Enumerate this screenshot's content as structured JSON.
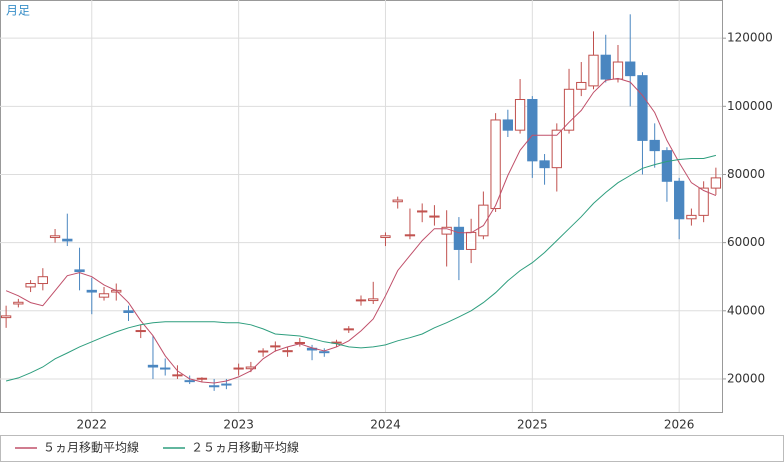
{
  "chart_data": {
    "type": "candlestick",
    "label": "月足",
    "categories": [
      null,
      null,
      null,
      null,
      null,
      null,
      null,
      "2022",
      null,
      null,
      null,
      null,
      null,
      null,
      null,
      null,
      null,
      null,
      null,
      "2023",
      null,
      null,
      null,
      null,
      null,
      null,
      null,
      null,
      null,
      null,
      null,
      "2024",
      null,
      null,
      null,
      null,
      null,
      null,
      null,
      null,
      null,
      null,
      null,
      "2025",
      null,
      null,
      null,
      null,
      null,
      null,
      null,
      null,
      null,
      null,
      null,
      "2026",
      null,
      null,
      null
    ],
    "open": [
      38000,
      42000,
      47000,
      48000,
      61500,
      61000,
      52000,
      46000,
      44000,
      45500,
      40000,
      34000,
      24000,
      23200,
      21000,
      19500,
      20000,
      18000,
      18500,
      23000,
      23000,
      28000,
      29500,
      28000,
      30500,
      29000,
      28000,
      30500,
      34500,
      43000,
      43000,
      61500,
      72000,
      62000,
      69000,
      67500,
      62500,
      64500,
      58000,
      62000,
      70000,
      96000,
      93000,
      102000,
      84000,
      82000,
      93000,
      105000,
      106000,
      115000,
      108000,
      113000,
      109000,
      90000,
      87000,
      78000,
      67000,
      68000,
      76000
    ],
    "high": [
      41500,
      43500,
      49000,
      52500,
      64000,
      68500,
      58500,
      49700,
      47000,
      48000,
      41500,
      36000,
      32700,
      26000,
      24000,
      21000,
      20500,
      20000,
      20000,
      24500,
      25000,
      29000,
      31000,
      29500,
      32000,
      30000,
      29000,
      31500,
      35500,
      44500,
      48500,
      63000,
      73500,
      70000,
      71500,
      71000,
      69500,
      67500,
      67000,
      75000,
      98000,
      99000,
      108000,
      103000,
      86000,
      95000,
      111000,
      113000,
      122000,
      121000,
      118000,
      127000,
      110000,
      95000,
      88000,
      79000,
      70000,
      78000,
      82000
    ],
    "low": [
      35000,
      41000,
      45500,
      46000,
      60000,
      59000,
      46000,
      39000,
      43000,
      43000,
      37000,
      32000,
      20000,
      21000,
      20000,
      18500,
      19000,
      16500,
      17000,
      21000,
      22000,
      26500,
      28000,
      26500,
      29500,
      25500,
      26500,
      29500,
      33500,
      41500,
      42000,
      59000,
      70000,
      61000,
      66000,
      65000,
      53000,
      49000,
      54000,
      61000,
      69000,
      91000,
      92000,
      79000,
      77000,
      75000,
      92000,
      103000,
      105000,
      107000,
      107000,
      100000,
      80000,
      82000,
      72000,
      61000,
      65000,
      66000,
      74000
    ],
    "close": [
      38500,
      42500,
      48000,
      50000,
      62000,
      60500,
      51500,
      45500,
      45000,
      46000,
      39500,
      34200,
      23500,
      23000,
      21200,
      19300,
      20200,
      17800,
      18300,
      23200,
      23500,
      28200,
      29700,
      28300,
      30700,
      28500,
      27800,
      30800,
      34700,
      43200,
      43500,
      62000,
      72500,
      62300,
      69300,
      67800,
      64500,
      58000,
      63000,
      71000,
      96000,
      93000,
      102000,
      84000,
      82000,
      93000,
      105000,
      107000,
      115000,
      108000,
      113000,
      109000,
      90000,
      87000,
      78000,
      67000,
      68000,
      76000,
      79000
    ],
    "up_color": "#c0504d",
    "down_color": "#4a86c0",
    "lines": [
      {
        "name": "５ヵ月移動平均線",
        "color": "#c0506a",
        "values": [
          45900,
          44400,
          42400,
          41500,
          45900,
          50300,
          51200,
          50000,
          47600,
          45900,
          42400,
          37100,
          32700,
          26800,
          22400,
          20000,
          19100,
          18800,
          19400,
          20600,
          22400,
          25900,
          28200,
          29400,
          30300,
          29100,
          28200,
          29400,
          31200,
          34100,
          37600,
          44400,
          51800,
          56200,
          60600,
          64100,
          64100,
          62900,
          62900,
          65000,
          70900,
          79700,
          87100,
          91500,
          91500,
          91500,
          95300,
          98800,
          104100,
          107600,
          108200,
          107100,
          103200,
          98200,
          90000,
          83500,
          77600,
          75300,
          73800
        ]
      },
      {
        "name": "２５ヵ月移動平均線",
        "color": "#2e9e7e",
        "values": [
          19400,
          20300,
          21800,
          23500,
          25900,
          27600,
          29400,
          30900,
          32400,
          33800,
          35000,
          35900,
          36500,
          36800,
          36800,
          36800,
          36800,
          36800,
          36500,
          36500,
          35900,
          34700,
          33200,
          32900,
          32600,
          31800,
          30900,
          30300,
          29400,
          29100,
          29400,
          30000,
          31200,
          32100,
          33200,
          35000,
          36500,
          38200,
          40000,
          42400,
          45300,
          48800,
          51800,
          54100,
          57100,
          60600,
          64100,
          67600,
          71500,
          74700,
          77600,
          79700,
          81800,
          82900,
          83800,
          84400,
          84700,
          84700,
          85600
        ]
      }
    ],
    "ylim": [
      10300,
      131200
    ],
    "yticks": [
      20000,
      40000,
      60000,
      80000,
      100000,
      120000
    ],
    "grid": true
  }
}
